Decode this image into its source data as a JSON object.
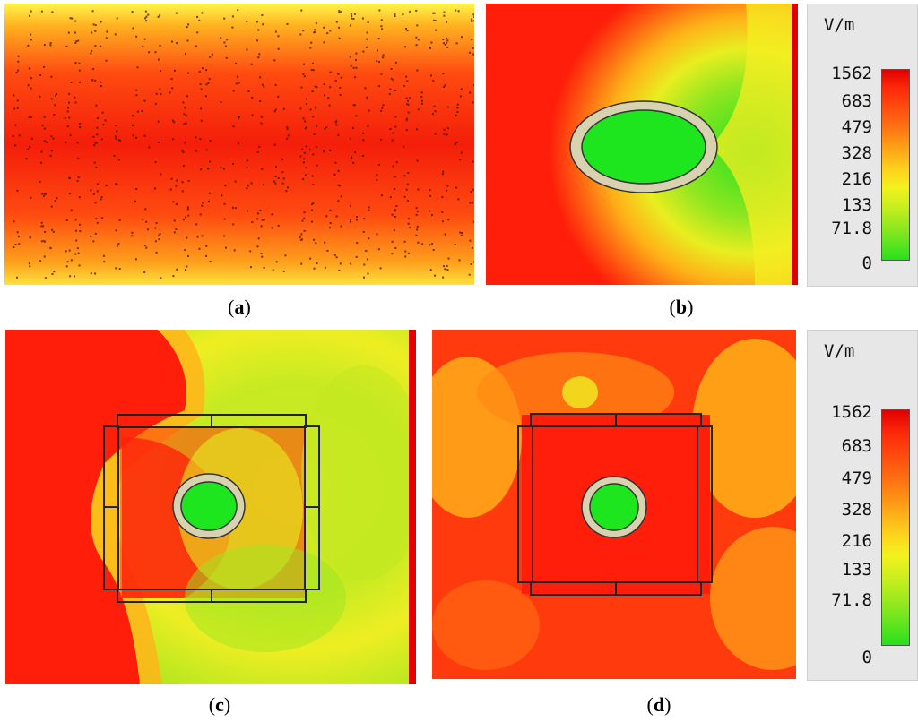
{
  "captions": {
    "a": "a",
    "b": "b",
    "c": "c",
    "d": "d"
  },
  "legend_top": {
    "unit": "V/m",
    "ticks": [
      "1562",
      "683",
      "479",
      "328",
      "216",
      "133",
      "71.8",
      "0"
    ]
  },
  "legend_bottom": {
    "unit": "V/m",
    "ticks": [
      "1562",
      "683",
      "479",
      "328",
      "216",
      "133",
      "71.8",
      "0"
    ]
  },
  "colors": {
    "high": "#ff1a0a",
    "mid_high": "#ff8c14",
    "mid": "#ffe61a",
    "mid_low": "#b4e61e",
    "low": "#1ee61e",
    "ring": "#d9d2b0"
  }
}
